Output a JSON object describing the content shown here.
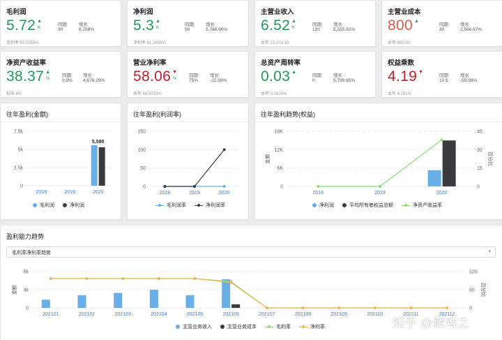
{
  "kpi_cards": [
    {
      "title": "毛利润",
      "value": "5.72",
      "color": "green",
      "arrow": "up",
      "unit": "K",
      "stat1_label": "同期",
      "stat1_value": "90",
      "stat2_label": "增长",
      "stat2_value": "6.259%",
      "footer": "毛利率 87.7359%"
    },
    {
      "title": "净利润",
      "value": "5.3",
      "color": "green",
      "arrow": "up",
      "unit": "K",
      "stat1_label": "同期",
      "stat1_value": "90",
      "stat2_label": "增长",
      "stat2_value": "5,788.96%",
      "footer": "净利率 81.2493%"
    },
    {
      "title": "主营业收入",
      "value": "6.52",
      "color": "green",
      "arrow": "up",
      "unit": "K",
      "stat1_label": "同期",
      "stat1_value": "120",
      "stat2_label": "增长",
      "stat2_value": "5,335.92%",
      "footer": "本年 22,103.10"
    },
    {
      "title": "主营业成本",
      "value": "800",
      "color": "red",
      "arrow": "up",
      "unit": "",
      "stat1_label": "同期",
      "stat1_value": "30",
      "stat2_label": "增长",
      "stat2_value": "2,566.67%",
      "footer": "本年 800.00"
    },
    {
      "title": "净资产收益率",
      "value": "38.37",
      "color": "green",
      "arrow": "up",
      "unit": "%",
      "stat1_label": "同期",
      "stat1_value": "0.8%",
      "stat2_label": "增长",
      "stat2_value": "4,678.29%",
      "footer": "标准 8%"
    },
    {
      "title": "营业净利率",
      "value": "58.06",
      "color": "darkred",
      "arrow": "down",
      "unit": "%",
      "stat1_label": "同期",
      "stat1_value": "75%",
      "stat2_label": "增长",
      "stat2_value": "-22.59%",
      "footer": "本年 84.5033%"
    },
    {
      "title": "总资产周转率",
      "value": "0.03",
      "color": "green",
      "arrow": "up",
      "unit": "",
      "stat1_label": "同期",
      "stat1_value": "0",
      "stat2_label": "增长",
      "stat2_value": "5,799.65%",
      "footer": "本年 0.0814%"
    },
    {
      "title": "权益乘数",
      "value": "4.19",
      "color": "darkred",
      "arrow": "down",
      "unit": "",
      "stat1_label": "同期",
      "stat1_value": "10.5",
      "stat2_label": "增长",
      "stat2_value": "-59.98%",
      "footer": "本年 4.191%"
    }
  ],
  "colors": {
    "blue": "#6aaee6",
    "black": "#3b3b3f",
    "green": "#8bdc73",
    "orange": "#f0b55a",
    "navy": "#2f3d4d",
    "grid": "#e8e8e8",
    "axis": "#999999"
  },
  "panel1": {
    "title": "往年盈利(金额)",
    "legend": [
      "毛利润",
      "净利润"
    ]
  },
  "panel2": {
    "title": "往年盈利(利润率)",
    "legend": [
      "毛利润率",
      "净利润率"
    ]
  },
  "panel3": {
    "title": "往年盈利趋势(权益)",
    "legend": [
      "净利润",
      "平均所有者权益总额",
      "净资产收益率"
    ]
  },
  "panel4": {
    "title": "盈利能力趋势",
    "select_value": "毛利率净利率趋势",
    "legend": [
      "主营业务收入",
      "主营业务成本",
      "毛利率",
      "净利率"
    ]
  },
  "watermark": "知乎 @藏难之",
  "chart_data": [
    {
      "type": "bar",
      "categories": [
        "2018",
        "2019",
        "2020"
      ],
      "series": [
        {
          "name": "毛利润",
          "values": [
            0,
            0,
            5590
          ]
        },
        {
          "name": "净利润",
          "values": [
            0,
            0,
            5300
          ]
        }
      ],
      "ylim": [
        0,
        7500
      ],
      "yticks": [
        "0",
        "2.5k",
        "5k",
        "7.5k"
      ],
      "data_labels": [
        {
          "category": "2020",
          "text": "5,590"
        }
      ]
    },
    {
      "type": "line",
      "categories": [
        "2018",
        "2019",
        "2020"
      ],
      "series": [
        {
          "name": "毛利润率",
          "values": [
            0,
            0,
            0
          ]
        },
        {
          "name": "净利润率",
          "values": [
            0,
            0,
            100
          ]
        }
      ],
      "ylim": [
        0,
        150
      ],
      "yticks": [
        "0",
        "50",
        "100",
        "150"
      ]
    },
    {
      "type": "bar",
      "categories": [
        "2016",
        "2019",
        "2020"
      ],
      "series": [
        {
          "name": "净利润",
          "values": [
            0,
            0,
            5300
          ]
        },
        {
          "name": "平均所有者权益总额",
          "values": [
            0,
            0,
            15000
          ]
        },
        {
          "name": "净资产收益率",
          "values": [
            0,
            0,
            38
          ]
        }
      ],
      "ylim": [
        0,
        18000
      ],
      "yticks": [
        "0",
        "6K",
        "12K",
        "18K"
      ],
      "ylabel": "金额",
      "y2lim": [
        0,
        45
      ],
      "y2ticks": [
        "0",
        "15",
        "30",
        "45"
      ],
      "y2label": "百分比"
    },
    {
      "type": "bar",
      "categories": [
        "202101",
        "202102",
        "202103",
        "202104",
        "202105",
        "202106",
        "202107",
        "202108",
        "202109",
        "202110",
        "202111",
        "202112"
      ],
      "series": [
        {
          "name": "主营业务收入",
          "values": [
            1800,
            2800,
            3300,
            4000,
            2800,
            6300,
            0,
            0,
            0,
            0,
            0,
            0
          ]
        },
        {
          "name": "主营业务成本",
          "values": [
            0,
            0,
            0,
            0,
            0,
            800,
            0,
            0,
            0,
            0,
            0,
            0
          ]
        },
        {
          "name": "毛利率",
          "values": [
            97,
            97,
            97,
            97,
            97,
            87,
            0,
            0,
            0,
            0,
            0,
            0
          ]
        },
        {
          "name": "净利率",
          "values": [
            97,
            97,
            97,
            97,
            97,
            84,
            0,
            0,
            0,
            0,
            0,
            0
          ]
        }
      ],
      "ylim": [
        0,
        8000
      ],
      "yticks": [
        "0",
        "4k",
        "8k"
      ],
      "ylabel": "金额",
      "y2lim": [
        0,
        120
      ],
      "y2ticks": [
        "0",
        "60",
        "120"
      ],
      "y2label": "百分比"
    }
  ]
}
